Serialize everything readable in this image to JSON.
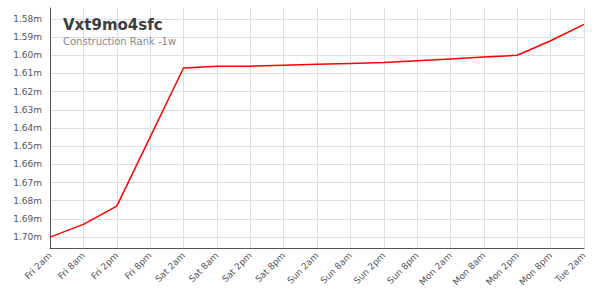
{
  "chart_data": {
    "type": "line",
    "title": "Vxt9mo4sfc",
    "subtitle": "Construction Rank -1w",
    "categories": [
      "Fri 2am",
      "Fri 8am",
      "Fri 2pm",
      "Fri 8pm",
      "Sat 2am",
      "Sat 8am",
      "Sat 2pm",
      "Sat 8pm",
      "Sun 2am",
      "Sun 8am",
      "Sun 2pm",
      "Sun 8pm",
      "Mon 2am",
      "Mon 8am",
      "Mon 2pm",
      "Mon 8pm",
      "Tue 2am"
    ],
    "values": [
      1700000,
      1693000,
      1683000,
      1645000,
      1607000,
      1606000,
      1606000,
      1605500,
      1605000,
      1604500,
      1604000,
      1603000,
      1602000,
      1601000,
      1600000,
      1592000,
      1583000
    ],
    "color": "#ff0000",
    "ylim": [
      1706000,
      1574000
    ],
    "yticks": [
      {
        "value": 1580000,
        "label": "1.58m"
      },
      {
        "value": 1590000,
        "label": "1.59m"
      },
      {
        "value": 1600000,
        "label": "1.60m"
      },
      {
        "value": 1610000,
        "label": "1.61m"
      },
      {
        "value": 1620000,
        "label": "1.62m"
      },
      {
        "value": 1630000,
        "label": "1.63m"
      },
      {
        "value": 1640000,
        "label": "1.64m"
      },
      {
        "value": 1650000,
        "label": "1.65m"
      },
      {
        "value": 1660000,
        "label": "1.66m"
      },
      {
        "value": 1670000,
        "label": "1.67m"
      },
      {
        "value": 1680000,
        "label": "1.68m"
      },
      {
        "value": 1690000,
        "label": "1.69m"
      },
      {
        "value": 1700000,
        "label": "1.70m"
      }
    ],
    "grid": true
  }
}
